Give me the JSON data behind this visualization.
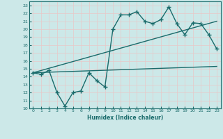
{
  "xlabel": "Humidex (Indice chaleur)",
  "bg_color": "#cce8e8",
  "grid_color": "#aad4d4",
  "line_color": "#1a6b6b",
  "xlim": [
    -0.5,
    23.5
  ],
  "ylim": [
    10,
    23.5
  ],
  "xticks": [
    0,
    1,
    2,
    3,
    4,
    5,
    6,
    7,
    8,
    9,
    10,
    11,
    12,
    13,
    14,
    15,
    16,
    17,
    18,
    19,
    20,
    21,
    22,
    23
  ],
  "yticks": [
    10,
    11,
    12,
    13,
    14,
    15,
    16,
    17,
    18,
    19,
    20,
    21,
    22,
    23
  ],
  "line1_x": [
    0,
    1,
    2,
    3,
    4,
    5,
    6,
    7,
    8,
    9,
    10,
    11,
    12,
    13,
    14,
    15,
    16,
    17,
    18,
    19,
    20,
    21,
    22,
    23
  ],
  "line1_y": [
    14.5,
    14.3,
    14.8,
    12.0,
    10.3,
    12.0,
    12.2,
    14.5,
    13.5,
    12.7,
    20.0,
    21.8,
    21.8,
    22.2,
    21.0,
    20.7,
    21.2,
    22.8,
    20.7,
    19.3,
    20.8,
    20.7,
    19.3,
    17.5
  ],
  "line2_x": [
    0,
    23
  ],
  "line2_y": [
    14.5,
    21.0
  ],
  "line3_x": [
    0,
    23
  ],
  "line3_y": [
    14.5,
    15.3
  ],
  "marker": "+",
  "markersize": 4,
  "linewidth": 1.0
}
